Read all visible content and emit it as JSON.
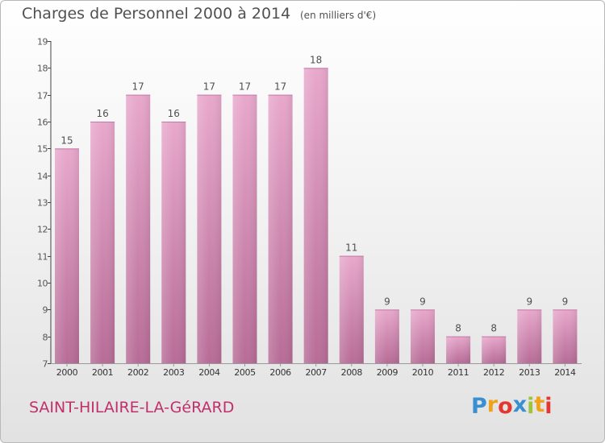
{
  "header": {
    "title": "Charges de Personnel 2000 à 2014",
    "unit": "(en milliers d'€)"
  },
  "footer": {
    "commune": "SAINT-HILAIRE-LA-GéRARD",
    "logo_letters": [
      "P",
      "r",
      "o",
      "x",
      "i",
      "t",
      "i"
    ],
    "logo_colors": [
      "#3a8fd0",
      "#f0a21a",
      "#e5362f",
      "#3a8fd0",
      "#9bc53d",
      "#f0a21a",
      "#e5362f"
    ]
  },
  "chart_data": {
    "type": "bar",
    "categories": [
      "2000",
      "2001",
      "2002",
      "2003",
      "2004",
      "2005",
      "2006",
      "2007",
      "2008",
      "2009",
      "2010",
      "2011",
      "2012",
      "2013",
      "2014"
    ],
    "values": [
      15,
      16,
      17,
      16,
      17,
      17,
      17,
      18,
      11,
      9,
      9,
      8,
      8,
      9,
      9
    ],
    "title": "Charges de Personnel 2000 à 2014",
    "subtitle": "(en milliers d'€)",
    "xlabel": "",
    "ylabel": "",
    "ylim": [
      7,
      19
    ],
    "yticks": [
      7,
      8,
      9,
      10,
      11,
      12,
      13,
      14,
      15,
      16,
      17,
      18,
      19
    ],
    "grid": false,
    "legend": "none",
    "bar_color": "#d98ab5",
    "label_color": "#505050"
  }
}
